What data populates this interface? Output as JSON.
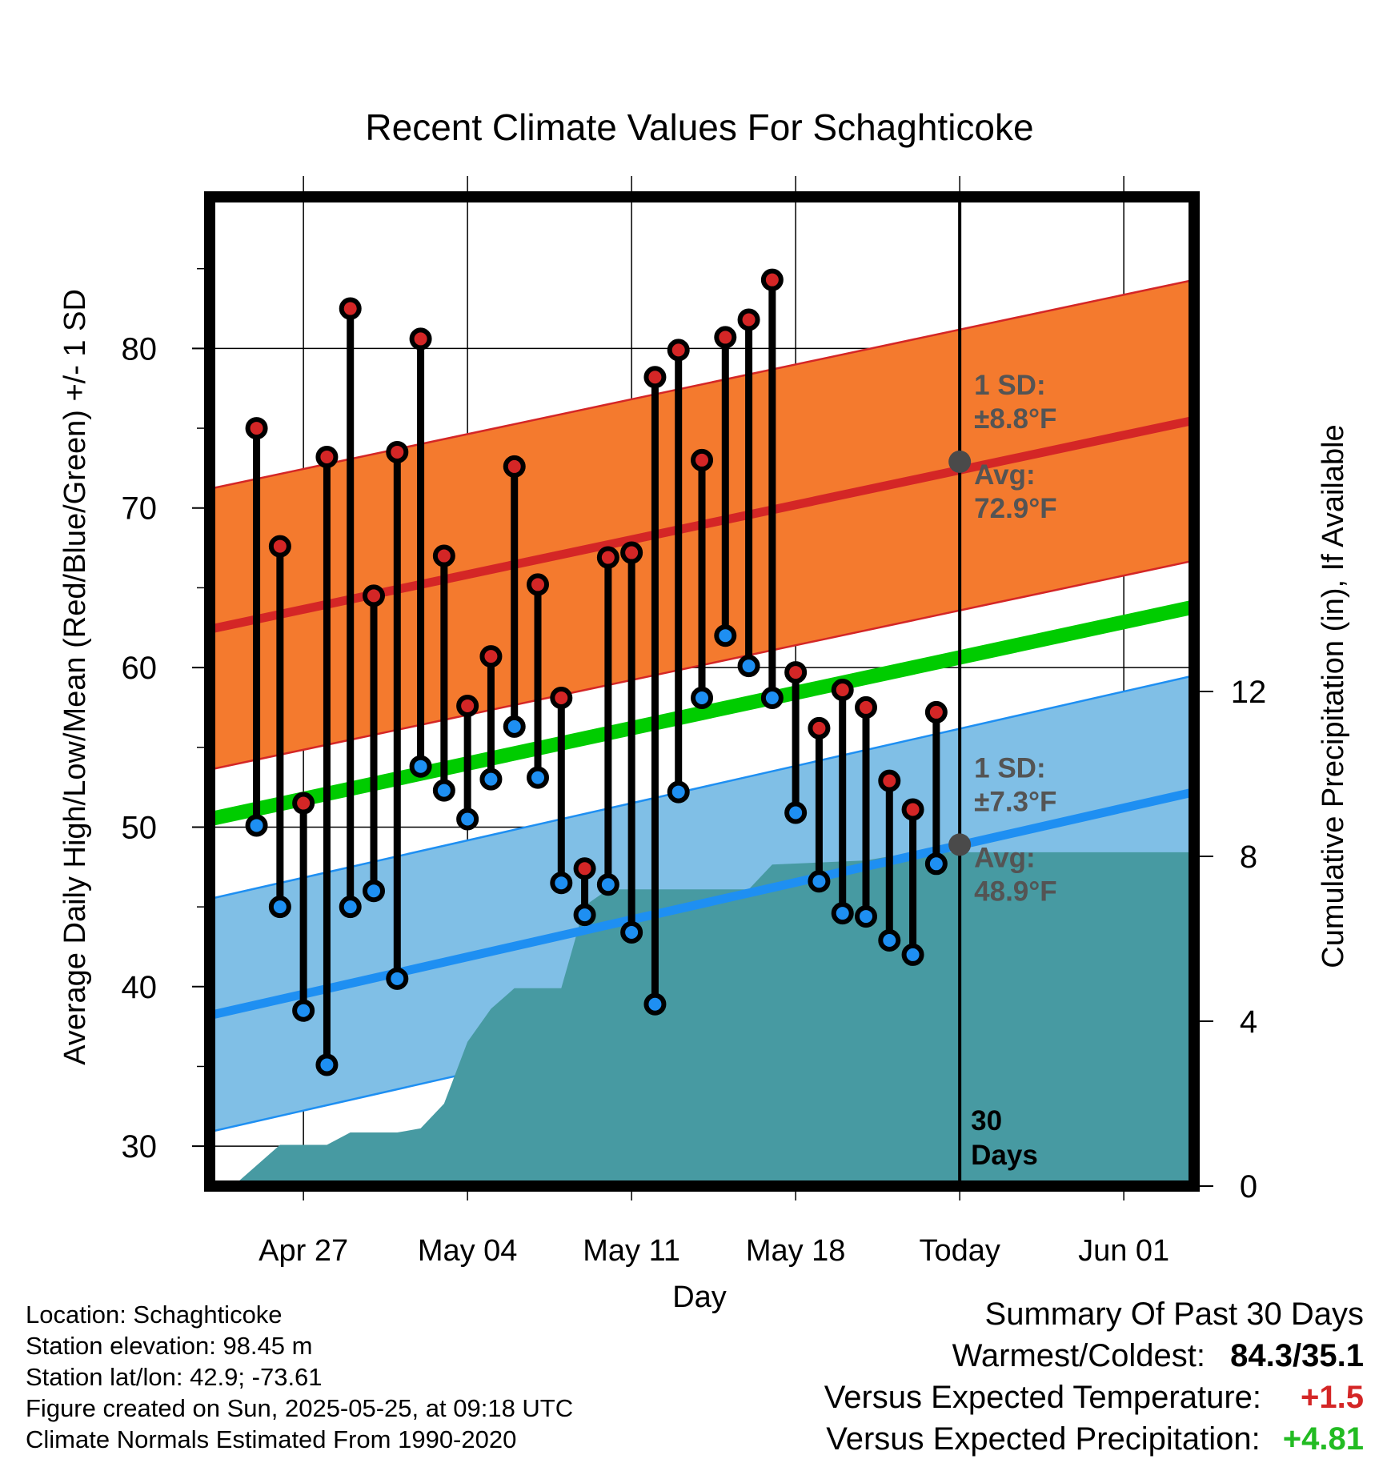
{
  "chart_data": {
    "type": "range-dot",
    "title": "Recent Climate Values For Schaghticoke",
    "xlabel": "Day",
    "ylabel": "Average Daily High/Low/Mean (Red/Blue/Green) +/- 1 SD",
    "y2label": "Cumulative Precipitation (in), If Available",
    "x_ticks": [
      {
        "date": "2025-04-27",
        "label": "Apr 27"
      },
      {
        "date": "2025-05-04",
        "label": "May 04"
      },
      {
        "date": "2025-05-11",
        "label": "May 11"
      },
      {
        "date": "2025-05-18",
        "label": "May 18"
      },
      {
        "date": "2025-05-25",
        "label": "Today"
      },
      {
        "date": "2025-06-01",
        "label": "Jun 01"
      }
    ],
    "xlim": [
      "2025-04-23",
      "2025-06-04"
    ],
    "ylim": [
      27.5,
      89.5
    ],
    "y_ticks": [
      30,
      40,
      50,
      60,
      70,
      80
    ],
    "y2lim": [
      0,
      24
    ],
    "y2_ticks": [
      0,
      4,
      8,
      12
    ],
    "grid": true,
    "today": "2025-05-25",
    "today_label": [
      "30",
      "Days"
    ],
    "daily": [
      {
        "date": "2025-04-25",
        "high": 75.0,
        "low": 50.1
      },
      {
        "date": "2025-04-26",
        "high": 67.6,
        "low": 45.0
      },
      {
        "date": "2025-04-27",
        "high": 51.5,
        "low": 38.5
      },
      {
        "date": "2025-04-28",
        "high": 73.2,
        "low": 35.1
      },
      {
        "date": "2025-04-29",
        "high": 82.5,
        "low": 45.0
      },
      {
        "date": "2025-04-30",
        "high": 64.5,
        "low": 46.0
      },
      {
        "date": "2025-05-01",
        "high": 73.5,
        "low": 40.5
      },
      {
        "date": "2025-05-02",
        "high": 80.6,
        "low": 53.8
      },
      {
        "date": "2025-05-03",
        "high": 67.0,
        "low": 52.3
      },
      {
        "date": "2025-05-04",
        "high": 57.6,
        "low": 50.5
      },
      {
        "date": "2025-05-05",
        "high": 60.7,
        "low": 53.0
      },
      {
        "date": "2025-05-06",
        "high": 72.6,
        "low": 56.3
      },
      {
        "date": "2025-05-07",
        "high": 65.2,
        "low": 53.1
      },
      {
        "date": "2025-05-08",
        "high": 58.1,
        "low": 46.5
      },
      {
        "date": "2025-05-09",
        "high": 47.4,
        "low": 44.5
      },
      {
        "date": "2025-05-10",
        "high": 66.9,
        "low": 46.4
      },
      {
        "date": "2025-05-11",
        "high": 67.2,
        "low": 43.4
      },
      {
        "date": "2025-05-12",
        "high": 78.2,
        "low": 38.9
      },
      {
        "date": "2025-05-13",
        "high": 79.9,
        "low": 52.2
      },
      {
        "date": "2025-05-14",
        "high": 73.0,
        "low": 58.1
      },
      {
        "date": "2025-05-15",
        "high": 80.7,
        "low": 62.0
      },
      {
        "date": "2025-05-16",
        "high": 81.8,
        "low": 60.1
      },
      {
        "date": "2025-05-17",
        "high": 84.3,
        "low": 58.1
      },
      {
        "date": "2025-05-18",
        "high": 59.7,
        "low": 50.9
      },
      {
        "date": "2025-05-19",
        "high": 56.2,
        "low": 46.6
      },
      {
        "date": "2025-05-20",
        "high": 58.6,
        "low": 44.6
      },
      {
        "date": "2025-05-21",
        "high": 57.5,
        "low": 44.4
      },
      {
        "date": "2025-05-22",
        "high": 52.9,
        "low": 42.9
      },
      {
        "date": "2025-05-23",
        "high": 51.1,
        "low": 42.0
      },
      {
        "date": "2025-05-24",
        "high": 57.2,
        "low": 47.7
      }
    ],
    "normal_high": {
      "start": {
        "date": "2025-04-23",
        "avg": 62.4
      },
      "end": {
        "date": "2025-06-04",
        "avg": 75.5
      },
      "sd": 8.8
    },
    "normal_low": {
      "start": {
        "date": "2025-04-23",
        "avg": 38.2
      },
      "end": {
        "date": "2025-06-04",
        "avg": 52.2
      },
      "sd": 7.3
    },
    "normal_mean": {
      "start": {
        "date": "2025-04-23",
        "avg": 50.5
      },
      "end": {
        "date": "2025-06-04",
        "avg": 63.8
      }
    },
    "precip_cumulative": [
      {
        "date": "2025-04-24",
        "in": 0.0
      },
      {
        "date": "2025-04-25",
        "in": 0.5
      },
      {
        "date": "2025-04-26",
        "in": 1.0
      },
      {
        "date": "2025-04-28",
        "in": 1.0
      },
      {
        "date": "2025-04-29",
        "in": 1.3
      },
      {
        "date": "2025-05-01",
        "in": 1.3
      },
      {
        "date": "2025-05-02",
        "in": 1.4
      },
      {
        "date": "2025-05-03",
        "in": 2.0
      },
      {
        "date": "2025-05-04",
        "in": 3.5
      },
      {
        "date": "2025-05-05",
        "in": 4.3
      },
      {
        "date": "2025-05-06",
        "in": 4.8
      },
      {
        "date": "2025-05-08",
        "in": 4.8
      },
      {
        "date": "2025-05-09",
        "in": 6.8
      },
      {
        "date": "2025-05-10",
        "in": 7.2
      },
      {
        "date": "2025-05-15",
        "in": 7.2
      },
      {
        "date": "2025-05-16",
        "in": 7.2
      },
      {
        "date": "2025-05-17",
        "in": 7.8
      },
      {
        "date": "2025-05-21",
        "in": 7.9
      },
      {
        "date": "2025-05-22",
        "in": 8.0
      },
      {
        "date": "2025-05-23",
        "in": 8.0
      },
      {
        "date": "2025-05-24",
        "in": 8.1
      },
      {
        "date": "2025-06-04",
        "in": 8.1
      }
    ],
    "annotations": {
      "high": {
        "sd_title": "1 SD:",
        "sd_text": "±8.8°F",
        "avg_title": "Avg:",
        "avg_text": "72.9°F",
        "avg_value": 72.9
      },
      "low": {
        "sd_title": "1 SD:",
        "sd_text": "±7.3°F",
        "avg_title": "Avg:",
        "avg_text": "48.9°F",
        "avg_value": 48.9
      }
    }
  },
  "colors": {
    "high_band": "#f47a2e",
    "high_band_edge": "#d42626",
    "high_avg_line": "#d42626",
    "low_band": "#80bfe6",
    "low_band_edge": "#1e8ff2",
    "low_avg_line": "#1e8ff2",
    "mean_line": "#00cc00",
    "precip_fill": "#479aa2",
    "high_dot": "#d42626",
    "low_dot": "#1e8ff2",
    "annotation_text": "#545454",
    "positive_temp": "#d42626",
    "positive_precip": "#22bb22"
  },
  "info": {
    "location": "Location: Schaghticoke",
    "elevation": "Station elevation: 98.45 m",
    "latlon": "Station lat/lon: 42.9; -73.61",
    "created": "Figure created on Sun, 2025-05-25, at 09:18 UTC",
    "normals": "Climate Normals Estimated From 1990-2020"
  },
  "summary": {
    "title": "Summary Of Past 30 Days",
    "warm_cold_label": "Warmest/Coldest:",
    "warm_cold_value": "84.3/35.1",
    "temp_label": "Versus Expected Temperature:",
    "temp_value": "+1.5",
    "precip_label": "Versus Expected Precipitation:",
    "precip_value": "+4.81"
  }
}
